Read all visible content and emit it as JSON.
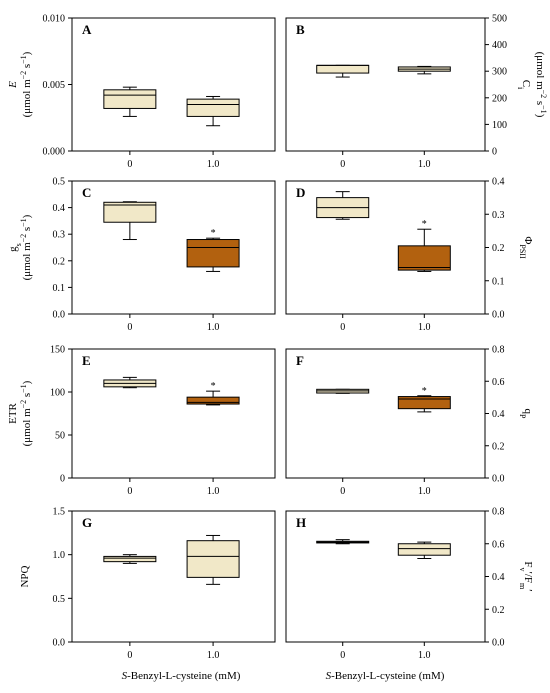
{
  "figure": {
    "xlabel_left": "S-Benzyl-L-cysteine (mM)",
    "xlabel_right": "S-Benzyl-L-cysteine (mM)"
  },
  "colors": {
    "light": "#f1e8c8",
    "dark": "#b2610f",
    "line": "#000000"
  },
  "chart_data": [
    {
      "type": "box",
      "panel": "A",
      "ylabel": "E (μmol m⁻² s⁻¹)",
      "ylim": [
        0,
        0.01
      ],
      "yticks": [
        "0.000",
        "0.005",
        "0.010"
      ],
      "categories": [
        "0",
        "1.0"
      ],
      "boxes": [
        {
          "min": 0.0026,
          "q1": 0.0032,
          "median": 0.0042,
          "q3": 0.0046,
          "max": 0.0048,
          "color": "light",
          "sig": ""
        },
        {
          "min": 0.0019,
          "q1": 0.0026,
          "median": 0.0035,
          "q3": 0.0039,
          "max": 0.0041,
          "color": "light",
          "sig": ""
        }
      ]
    },
    {
      "type": "box",
      "panel": "B",
      "ylabel": "Ci (μmol m⁻² s⁻¹)",
      "ylim": [
        0,
        500
      ],
      "yticks": [
        "0",
        "100",
        "200",
        "300",
        "400",
        "500"
      ],
      "categories": [
        "0",
        "1.0"
      ],
      "boxes": [
        {
          "min": 278,
          "q1": 293,
          "median": 322,
          "q3": 322,
          "max": 322,
          "color": "light",
          "sig": ""
        },
        {
          "min": 290,
          "q1": 300,
          "median": 308,
          "q3": 316,
          "max": 318,
          "color": "light",
          "sig": ""
        }
      ]
    },
    {
      "type": "box",
      "panel": "C",
      "ylabel": "gs (μmol m⁻² s⁻¹)",
      "ylim": [
        0,
        0.5
      ],
      "yticks": [
        "0.0",
        "0.1",
        "0.2",
        "0.3",
        "0.4",
        "0.5"
      ],
      "categories": [
        "0",
        "1.0"
      ],
      "boxes": [
        {
          "min": 0.28,
          "q1": 0.345,
          "median": 0.41,
          "q3": 0.42,
          "max": 0.422,
          "color": "light",
          "sig": ""
        },
        {
          "min": 0.16,
          "q1": 0.177,
          "median": 0.25,
          "q3": 0.28,
          "max": 0.285,
          "color": "dark",
          "sig": "*"
        }
      ]
    },
    {
      "type": "box",
      "panel": "D",
      "ylabel": "ΦPSII",
      "ylim": [
        0,
        0.4
      ],
      "yticks": [
        "0.0",
        "0.1",
        "0.2",
        "0.3",
        "0.4"
      ],
      "categories": [
        "0",
        "1.0"
      ],
      "boxes": [
        {
          "min": 0.285,
          "q1": 0.29,
          "median": 0.32,
          "q3": 0.35,
          "max": 0.368,
          "color": "light",
          "sig": ""
        },
        {
          "min": 0.128,
          "q1": 0.132,
          "median": 0.14,
          "q3": 0.205,
          "max": 0.255,
          "color": "dark",
          "sig": "*"
        }
      ]
    },
    {
      "type": "box",
      "panel": "E",
      "ylabel": "ETR (μmol m⁻² s⁻¹)",
      "ylim": [
        0,
        150
      ],
      "yticks": [
        "0",
        "50",
        "100",
        "150"
      ],
      "categories": [
        "0",
        "1.0"
      ],
      "boxes": [
        {
          "min": 105,
          "q1": 106,
          "median": 110,
          "q3": 114,
          "max": 117,
          "color": "light",
          "sig": ""
        },
        {
          "min": 85,
          "q1": 86,
          "median": 88,
          "q3": 94,
          "max": 101,
          "color": "dark",
          "sig": "*"
        }
      ]
    },
    {
      "type": "box",
      "panel": "F",
      "ylabel": "qP",
      "ylim": [
        0,
        0.8
      ],
      "yticks": [
        "0.0",
        "0.2",
        "0.4",
        "0.6",
        "0.8"
      ],
      "categories": [
        "0",
        "1.0"
      ],
      "boxes": [
        {
          "min": 0.525,
          "q1": 0.527,
          "median": 0.54,
          "q3": 0.55,
          "max": 0.55,
          "color": "light",
          "sig": ""
        },
        {
          "min": 0.41,
          "q1": 0.43,
          "median": 0.49,
          "q3": 0.505,
          "max": 0.51,
          "color": "dark",
          "sig": "*"
        }
      ]
    },
    {
      "type": "box",
      "panel": "G",
      "ylabel": "NPQ",
      "ylim": [
        0,
        1.5
      ],
      "yticks": [
        "0.0",
        "0.5",
        "1.0",
        "1.5"
      ],
      "categories": [
        "0",
        "1.0"
      ],
      "boxes": [
        {
          "min": 0.9,
          "q1": 0.92,
          "median": 0.96,
          "q3": 0.98,
          "max": 1.0,
          "color": "light",
          "sig": ""
        },
        {
          "min": 0.66,
          "q1": 0.74,
          "median": 0.98,
          "q3": 1.16,
          "max": 1.22,
          "color": "light",
          "sig": ""
        }
      ]
    },
    {
      "type": "box",
      "panel": "H",
      "ylabel": "Fv′/Fm′",
      "ylim": [
        0,
        0.8
      ],
      "yticks": [
        "0.0",
        "0.2",
        "0.4",
        "0.6",
        "0.8"
      ],
      "categories": [
        "0",
        "1.0"
      ],
      "boxes": [
        {
          "min": 0.6,
          "q1": 0.605,
          "median": 0.61,
          "q3": 0.615,
          "max": 0.625,
          "color": "light",
          "sig": ""
        },
        {
          "min": 0.51,
          "q1": 0.53,
          "median": 0.57,
          "q3": 0.6,
          "max": 0.61,
          "color": "light",
          "sig": ""
        }
      ]
    }
  ]
}
